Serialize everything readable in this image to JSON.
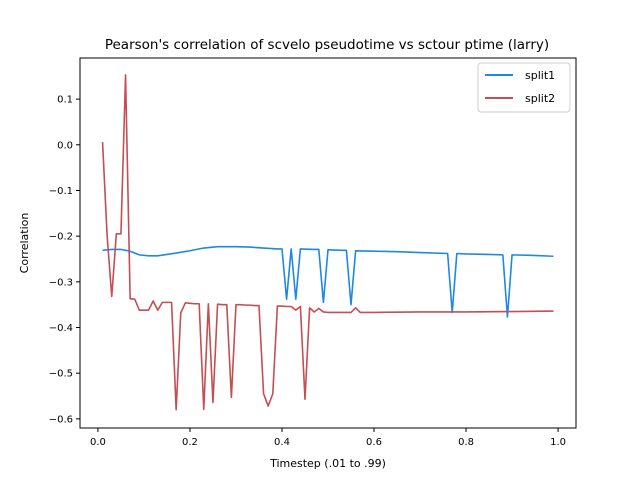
{
  "chart_data": {
    "type": "line",
    "title": "Pearson's correlation of scvelo pseudotime vs sctour ptime (larry)",
    "xlabel": "Timestep (.01 to .99)",
    "ylabel": "Correlation",
    "xlim": [
      -0.039,
      1.039
    ],
    "ylim": [
      -0.62,
      0.19
    ],
    "xticks": [
      0.0,
      0.2,
      0.4,
      0.6,
      0.8,
      1.0
    ],
    "xtick_labels": [
      "0.0",
      "0.2",
      "0.4",
      "0.6",
      "0.8",
      "1.0"
    ],
    "yticks": [
      -0.6,
      -0.5,
      -0.4,
      -0.3,
      -0.2,
      -0.1,
      0.0,
      0.1
    ],
    "ytick_labels": [
      "−0.6",
      "−0.5",
      "−0.4",
      "−0.3",
      "−0.2",
      "−0.1",
      "0.0",
      "0.1"
    ],
    "grid": false,
    "legend_position": "top-right",
    "series": [
      {
        "name": "split1",
        "color": "#1e88e5",
        "x": [
          0.01,
          0.03,
          0.05,
          0.07,
          0.09,
          0.11,
          0.13,
          0.15,
          0.17,
          0.2,
          0.23,
          0.26,
          0.3,
          0.33,
          0.36,
          0.39,
          0.4,
          0.41,
          0.42,
          0.43,
          0.44,
          0.47,
          0.48,
          0.49,
          0.5,
          0.53,
          0.54,
          0.55,
          0.56,
          0.6,
          0.65,
          0.7,
          0.76,
          0.77,
          0.78,
          0.8,
          0.85,
          0.88,
          0.89,
          0.9,
          0.94,
          0.99
        ],
        "y": [
          -0.231,
          -0.229,
          -0.229,
          -0.233,
          -0.241,
          -0.243,
          -0.243,
          -0.24,
          -0.237,
          -0.232,
          -0.226,
          -0.223,
          -0.223,
          -0.224,
          -0.226,
          -0.228,
          -0.228,
          -0.338,
          -0.228,
          -0.338,
          -0.228,
          -0.229,
          -0.229,
          -0.345,
          -0.23,
          -0.231,
          -0.231,
          -0.35,
          -0.232,
          -0.233,
          -0.234,
          -0.236,
          -0.238,
          -0.367,
          -0.238,
          -0.239,
          -0.24,
          -0.241,
          -0.377,
          -0.241,
          -0.242,
          -0.244
        ]
      },
      {
        "name": "split2",
        "color": "#c44e52",
        "x": [
          0.01,
          0.02,
          0.03,
          0.04,
          0.05,
          0.06,
          0.07,
          0.08,
          0.09,
          0.1,
          0.11,
          0.12,
          0.13,
          0.14,
          0.15,
          0.16,
          0.17,
          0.18,
          0.19,
          0.2,
          0.21,
          0.22,
          0.23,
          0.24,
          0.25,
          0.26,
          0.27,
          0.28,
          0.29,
          0.3,
          0.31,
          0.32,
          0.33,
          0.34,
          0.35,
          0.36,
          0.37,
          0.38,
          0.39,
          0.4,
          0.41,
          0.42,
          0.43,
          0.44,
          0.45,
          0.46,
          0.47,
          0.48,
          0.49,
          0.5,
          0.51,
          0.52,
          0.53,
          0.54,
          0.55,
          0.56,
          0.57,
          0.6,
          0.7,
          0.8,
          0.9,
          0.99
        ],
        "y": [
          0.006,
          -0.2,
          -0.332,
          -0.195,
          -0.195,
          0.153,
          -0.337,
          -0.338,
          -0.362,
          -0.362,
          -0.362,
          -0.342,
          -0.362,
          -0.345,
          -0.345,
          -0.345,
          -0.58,
          -0.368,
          -0.346,
          -0.347,
          -0.348,
          -0.348,
          -0.579,
          -0.348,
          -0.564,
          -0.349,
          -0.35,
          -0.35,
          -0.553,
          -0.35,
          -0.35,
          -0.351,
          -0.351,
          -0.352,
          -0.352,
          -0.545,
          -0.572,
          -0.545,
          -0.353,
          -0.353,
          -0.354,
          -0.354,
          -0.362,
          -0.354,
          -0.557,
          -0.357,
          -0.366,
          -0.358,
          -0.366,
          -0.367,
          -0.367,
          -0.367,
          -0.367,
          -0.367,
          -0.367,
          -0.357,
          -0.367,
          -0.367,
          -0.366,
          -0.366,
          -0.365,
          -0.364
        ]
      }
    ]
  }
}
